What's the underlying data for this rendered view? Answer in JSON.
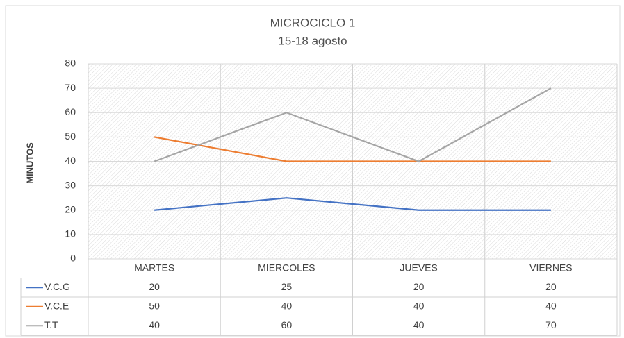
{
  "chart_data": {
    "type": "line",
    "title": "MICROCICLO 1",
    "subtitle": "15-18 agosto",
    "y_label": "MINUTOS",
    "categories": [
      "MARTES",
      "MIERCOLES",
      "JUEVES",
      "VIERNES"
    ],
    "series": [
      {
        "name": "V.C.G",
        "color": "#4472c4",
        "values": [
          20,
          25,
          20,
          20
        ]
      },
      {
        "name": "V.C.E",
        "color": "#ed7d31",
        "values": [
          50,
          40,
          40,
          40
        ]
      },
      {
        "name": "T.T",
        "color": "#a5a5a5",
        "values": [
          40,
          60,
          40,
          70
        ]
      }
    ],
    "ylim": [
      0,
      80
    ],
    "yticks": [
      0,
      10,
      20,
      30,
      40,
      50,
      60,
      70,
      80
    ],
    "grid": true
  }
}
